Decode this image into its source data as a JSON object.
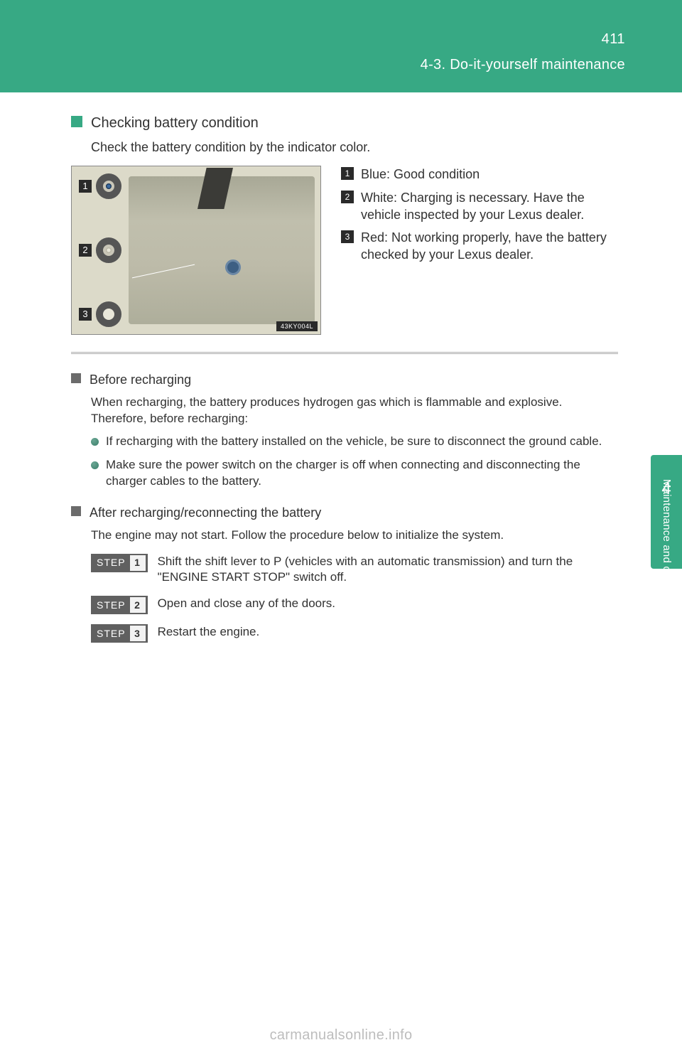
{
  "header": {
    "page_number": "411",
    "section": "4-3. Do-it-yourself maintenance",
    "accent_color": "#37a984"
  },
  "sidetab": {
    "number": "4",
    "label": "Maintenance and care"
  },
  "main_heading": "Checking battery condition",
  "intro": "Check the battery condition by the indicator color.",
  "figure": {
    "tag": "43KY004L"
  },
  "indicator": [
    {
      "num": "1",
      "label": "Blue: Good condition"
    },
    {
      "num": "2",
      "label": "White: Charging is necessary. Have the vehicle inspected by your Lexus dealer."
    },
    {
      "num": "3",
      "label": "Red: Not working properly, have the battery checked by your Lexus dealer."
    }
  ],
  "before_recharge": {
    "heading": "Before recharging",
    "body": "When recharging, the battery produces hydrogen gas which is flammable and explosive. Therefore, before recharging:",
    "bullets": [
      "If recharging with the battery installed on the vehicle, be sure to disconnect the ground cable.",
      "Make sure the power switch on the charger is off when connecting and disconnecting the charger cables to the battery."
    ]
  },
  "after_recharge": {
    "heading": "After recharging/reconnecting the battery",
    "body": "The engine may not start. Follow the procedure below to initialize the system.",
    "steps": [
      "Shift the shift lever to P (vehicles with an automatic transmission) and turn the \"ENGINE START STOP\" switch off.",
      "Open and close any of the doors.",
      "Restart the engine."
    ]
  },
  "watermark": "carmanualsonline.info"
}
